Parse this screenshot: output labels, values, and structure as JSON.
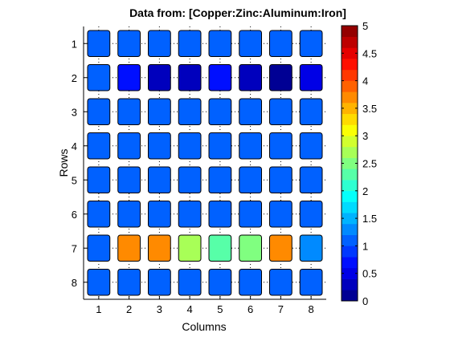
{
  "chart_data": {
    "type": "heatmap",
    "title": "Data from: [Copper:Zinc:Aluminum:Iron]",
    "xlabel": "Columns",
    "ylabel": "Rows",
    "columns": [
      "1",
      "2",
      "3",
      "4",
      "5",
      "6",
      "7",
      "8"
    ],
    "rows": [
      "1",
      "2",
      "3",
      "4",
      "5",
      "6",
      "7",
      "8"
    ],
    "values": [
      [
        1.0,
        1.0,
        1.0,
        1.0,
        1.0,
        1.0,
        1.0,
        1.0
      ],
      [
        1.0,
        0.6,
        0.2,
        0.2,
        0.6,
        0.2,
        0.15,
        0.5
      ],
      [
        1.0,
        1.0,
        1.0,
        1.0,
        1.0,
        1.0,
        1.0,
        1.0
      ],
      [
        1.0,
        1.0,
        1.0,
        1.0,
        1.0,
        1.0,
        1.0,
        1.0
      ],
      [
        1.0,
        1.0,
        1.0,
        1.0,
        1.0,
        1.0,
        1.0,
        1.0
      ],
      [
        1.0,
        1.0,
        1.0,
        1.0,
        1.0,
        1.0,
        1.0,
        1.0
      ],
      [
        1.0,
        3.7,
        3.7,
        2.7,
        2.3,
        2.4,
        3.7,
        1.2
      ],
      [
        1.0,
        1.0,
        1.0,
        1.0,
        1.0,
        1.0,
        1.0,
        1.0
      ]
    ],
    "colorbar": {
      "range": [
        0,
        5
      ],
      "ticks": [
        "0",
        "0.5",
        "1",
        "1.5",
        "2",
        "2.5",
        "3",
        "3.5",
        "4",
        "4.5",
        "5"
      ],
      "levels": 25,
      "colormap": "jet"
    },
    "grid": "dotted"
  }
}
